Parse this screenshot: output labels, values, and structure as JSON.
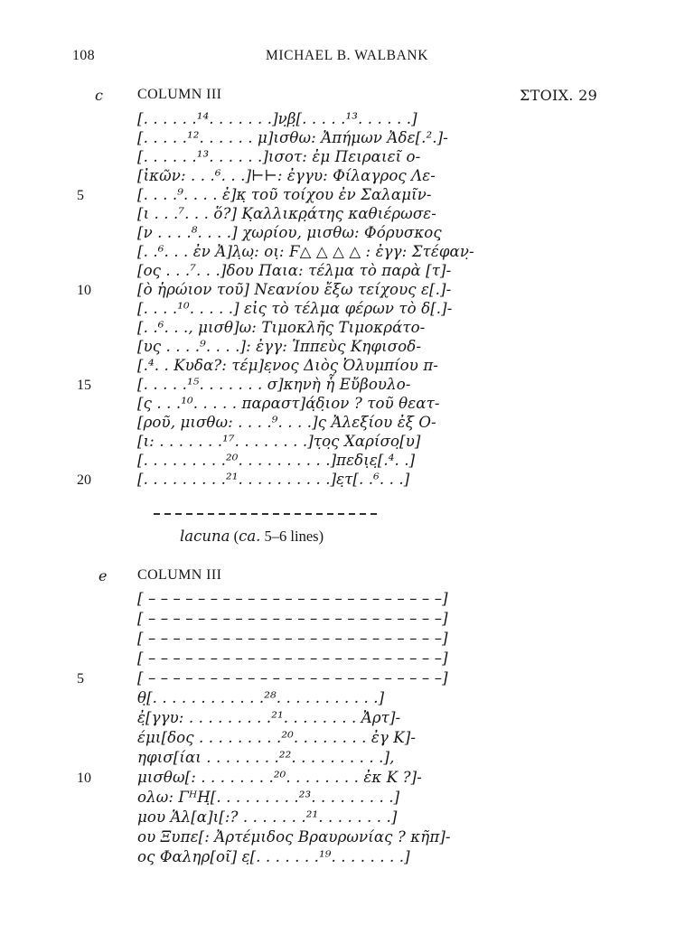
{
  "page": {
    "number": "108",
    "running_head": "MICHAEL B. WALBANK"
  },
  "section_c": {
    "marker": "c",
    "heading": "COLUMN III",
    "stoich": "ΣΤΟΙΧ. 29",
    "lines": [
      {
        "num": "",
        "text": "[. . . . . .¹⁴. . . . . . .]ν̣β̣[. . . . .¹³. . . . . .]"
      },
      {
        "num": "",
        "text": "[. . . . .¹². . . . . . μ]ισθω: Ἀπήμων Ἀδε[.².]-"
      },
      {
        "num": "",
        "text": "[. . . . . .¹³. . . . . .]ισοτ: ἐμ Πειραιεῖ ο-"
      },
      {
        "num": "",
        "text": "[ἰκῶν: . . .⁶. . .]⊢⊢: ἐγγυ: Φίλαγρος Λε-"
      },
      {
        "num": "5",
        "text": "[. . . .⁹. . . . ἐ]κ̣ τοῦ τοίχου ἐν Σαλαμῖν-"
      },
      {
        "num": "",
        "text": "[ι . . .⁷. . . ὅ?] Κ̣αλλικρ̣άτης καθιέρωσε-"
      },
      {
        "num": "",
        "text": "[ν . . . .⁸. . . .] χωρίου, μισθω: Φόρυσκος̣"
      },
      {
        "num": "",
        "text": "[. .⁶. . . ἐν Ἀ]λ̣ω̣: οι̣: Ϝ△ △ △ △ : ἐγγ: Στέφαν̣-"
      },
      {
        "num": "",
        "text": "[ος . . .⁷. . .]δου Παια: τέλμα τὸ παρὰ [τ]-"
      },
      {
        "num": "10",
        "text": "[ὸ ἡρώιον τοῦ] Νεανίου ἔξω τείχους ε[.]-"
      },
      {
        "num": "",
        "text": "[. . . .¹⁰. . . . .] εἰς τὸ τέλμα φέρων τὸ δ[.]-"
      },
      {
        "num": "",
        "text": "[. .⁶. . ., μισθ]ω: Τιμοκλῆς Τιμοκράτο-"
      },
      {
        "num": "",
        "text": "[υς . . . .⁹. . . .]: ἐγγ: Ἱππεὺς Κηφισοδ-"
      },
      {
        "num": "",
        "text": "[.⁴. . Κυδα?: τέμ]ε̣νος Διὸς Ὀλυμπίου π-"
      },
      {
        "num": "15",
        "text": "[. . . . .¹⁵. . . . . . . σ]κηνὴ ἧ Εὔβουλο-"
      },
      {
        "num": "",
        "text": "[ς . . .¹⁰. . . . . παραστ]ά̣δ̣ιον ? τοῦ θεατ-"
      },
      {
        "num": "",
        "text": "[ροῦ, μισθω: . . . .⁹. . . .]ς Ἀλεξίου ἐξ Ο-"
      },
      {
        "num": "",
        "text": "[ι: . . . . . . .¹⁷. . . . . . . .]τ̣ο̣ς Χαρίσο̣[υ]"
      },
      {
        "num": "",
        "text": "[. . . . . . . . .²⁰. . . . . . . . . .]πεδι̣ε̣[.⁴. .]"
      },
      {
        "num": "20",
        "text": "[. . . . . . . . .²¹. . . . . . . . . .]ε̣τ[. .⁶. . .]"
      }
    ]
  },
  "lacuna": {
    "word": "lacuna",
    "open": " (",
    "ca": "ca.",
    "rest": " 5–6 lines)"
  },
  "section_e": {
    "marker": "e",
    "heading": "COLUMN III",
    "lines": [
      {
        "num": "",
        "text": "[ – – – – – – – – – – – – – – – – – – – – – – – –]"
      },
      {
        "num": "",
        "text": "[ – – – – – – – – – – – – – – – – – – – – – – – –]"
      },
      {
        "num": "",
        "text": "[ – – – – – – – – – – – – – – – – – – – – – – – –]"
      },
      {
        "num": "",
        "text": "[ – – – – – – – – – – – – – – – – – – – – – – – –]"
      },
      {
        "num": "5",
        "text": "[ – – – – – – – – – – – – – – – – – – – – – – – –]"
      },
      {
        "num": "",
        "text": "θ̣[. . . . . . . . . . . .²⁸. . . . . . . . . . .]"
      },
      {
        "num": "",
        "text": "ἐ̣[γγυ: . . . . . . . . .²¹. . . . . . . . Ἀρτ]-"
      },
      {
        "num": "",
        "text": "έμι[δος . . . . . . . . .²⁰. . . . . . . . ἐγ Κ]-"
      },
      {
        "num": "",
        "text": "ηφισ[ίαι . . . . . . . .²². . . . . . . . . .],"
      },
      {
        "num": "10",
        "text": "μισθω[: . . . . . . . .²⁰. . . . . . . . ἐκ Κ ?]-"
      },
      {
        "num": "",
        "text": "ολω: ΓᴴΗ̣[. . . . . . . . .²³. . . . . . . . .]"
      },
      {
        "num": "",
        "text": "μου Ἁλ[α]ι[:? . . . . . . .²¹. . . . . . . .]"
      },
      {
        "num": "",
        "text": "ου Ξυπε[: Ἀρτέμιδος Βραυρωνίας ? κῆπ]-"
      },
      {
        "num": "",
        "text": "ος Φαληρ[οῖ] ε̣[. . . . . . .¹⁹. . . . . . . .]"
      }
    ]
  }
}
